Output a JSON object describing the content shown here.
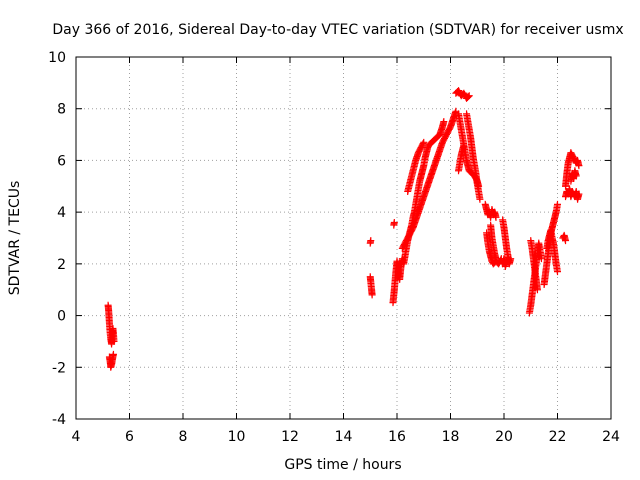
{
  "chart_data": {
    "type": "scatter",
    "title": "Day 366 of 2016, Sidereal Day-to-day VTEC variation (SDTVAR) for receiver usmx",
    "xlabel": "GPS time / hours",
    "ylabel": "SDTVAR / TECUs",
    "xlim": [
      4,
      24
    ],
    "ylim": [
      -4,
      10
    ],
    "xticks": [
      "4",
      "6",
      "8",
      "10",
      "12",
      "14",
      "16",
      "18",
      "20",
      "22",
      "24"
    ],
    "yticks": [
      "-4",
      "-2",
      "0",
      "2",
      "4",
      "6",
      "8",
      "10"
    ],
    "grid": true,
    "marker": "+",
    "color": "#ff0000",
    "series": [
      {
        "name": "SDTVAR",
        "segments": [
          [
            [
              5.2,
              0.4
            ],
            [
              5.22,
              0.2
            ],
            [
              5.25,
              -0.3
            ],
            [
              5.27,
              -0.6
            ],
            [
              5.3,
              -0.9
            ],
            [
              5.33,
              -1.1
            ],
            [
              5.35,
              -0.8
            ],
            [
              5.38,
              -0.5
            ],
            [
              5.4,
              -0.7
            ],
            [
              5.42,
              -1.0
            ]
          ],
          [
            [
              5.25,
              -1.6
            ],
            [
              5.28,
              -1.8
            ],
            [
              5.3,
              -2.0
            ],
            [
              5.33,
              -1.9
            ],
            [
              5.36,
              -1.7
            ],
            [
              5.4,
              -1.5
            ]
          ],
          [
            [
              15.0,
              2.8
            ],
            [
              15.02,
              2.9
            ]
          ],
          [
            [
              15.0,
              1.5
            ],
            [
              15.02,
              1.3
            ],
            [
              15.05,
              1.0
            ],
            [
              15.07,
              0.8
            ]
          ],
          [
            [
              15.88,
              3.5
            ],
            [
              15.9,
              3.6
            ]
          ],
          [
            [
              15.85,
              0.5
            ],
            [
              15.9,
              1.0
            ],
            [
              15.95,
              1.6
            ],
            [
              16.0,
              2.1
            ],
            [
              16.05,
              1.7
            ],
            [
              16.1,
              1.4
            ],
            [
              16.15,
              1.9
            ],
            [
              16.2,
              2.2
            ],
            [
              16.25,
              2.0
            ],
            [
              16.3,
              2.3
            ],
            [
              16.35,
              2.6
            ],
            [
              16.4,
              2.9
            ],
            [
              16.45,
              3.1
            ],
            [
              16.5,
              3.3
            ],
            [
              16.55,
              3.5
            ],
            [
              16.6,
              3.8
            ],
            [
              16.65,
              4.0
            ],
            [
              16.7,
              4.3
            ],
            [
              16.75,
              4.6
            ],
            [
              16.8,
              4.9
            ],
            [
              16.85,
              5.2
            ],
            [
              16.9,
              5.4
            ],
            [
              16.95,
              5.6
            ],
            [
              17.0,
              5.8
            ],
            [
              17.05,
              6.1
            ],
            [
              17.1,
              6.3
            ],
            [
              17.15,
              6.5
            ],
            [
              17.2,
              6.6
            ],
            [
              17.3,
              6.7
            ],
            [
              17.4,
              6.8
            ],
            [
              17.5,
              6.9
            ],
            [
              17.6,
              7.0
            ],
            [
              17.7,
              7.3
            ],
            [
              17.75,
              7.5
            ]
          ],
          [
            [
              16.2,
              2.6
            ],
            [
              16.3,
              2.8
            ],
            [
              16.4,
              3.0
            ],
            [
              16.5,
              3.2
            ],
            [
              16.6,
              3.4
            ],
            [
              16.7,
              3.7
            ],
            [
              16.8,
              4.0
            ],
            [
              16.9,
              4.3
            ],
            [
              17.0,
              4.6
            ],
            [
              17.1,
              4.9
            ],
            [
              17.2,
              5.2
            ],
            [
              17.3,
              5.5
            ],
            [
              17.4,
              5.8
            ],
            [
              17.5,
              6.1
            ],
            [
              17.6,
              6.4
            ],
            [
              17.7,
              6.7
            ],
            [
              17.8,
              6.9
            ],
            [
              17.9,
              7.1
            ],
            [
              18.0,
              7.3
            ],
            [
              18.1,
              7.6
            ],
            [
              18.2,
              7.9
            ]
          ],
          [
            [
              16.4,
              4.8
            ],
            [
              16.5,
              5.2
            ],
            [
              16.6,
              5.6
            ],
            [
              16.7,
              6.0
            ],
            [
              16.8,
              6.3
            ],
            [
              16.9,
              6.5
            ],
            [
              17.0,
              6.7
            ]
          ],
          [
            [
              18.2,
              8.6
            ],
            [
              18.3,
              8.7
            ],
            [
              18.4,
              8.5
            ],
            [
              18.5,
              8.6
            ],
            [
              18.6,
              8.4
            ],
            [
              18.7,
              8.5
            ]
          ],
          [
            [
              18.3,
              7.8
            ],
            [
              18.35,
              7.5
            ],
            [
              18.4,
              7.2
            ],
            [
              18.45,
              6.9
            ],
            [
              18.5,
              6.6
            ],
            [
              18.55,
              6.3
            ],
            [
              18.6,
              6.0
            ],
            [
              18.65,
              5.8
            ],
            [
              18.7,
              5.6
            ],
            [
              18.8,
              5.5
            ],
            [
              18.9,
              5.4
            ],
            [
              19.0,
              5.2
            ],
            [
              19.05,
              5.0
            ]
          ],
          [
            [
              18.6,
              7.8
            ],
            [
              18.65,
              7.5
            ],
            [
              18.7,
              7.2
            ],
            [
              18.75,
              6.9
            ],
            [
              18.8,
              6.5
            ],
            [
              18.85,
              6.1
            ],
            [
              18.9,
              5.8
            ],
            [
              18.95,
              5.5
            ],
            [
              19.0,
              5.1
            ],
            [
              19.05,
              4.8
            ],
            [
              19.1,
              4.5
            ]
          ],
          [
            [
              18.3,
              5.6
            ],
            [
              18.35,
              5.9
            ],
            [
              18.4,
              6.2
            ],
            [
              18.45,
              6.4
            ],
            [
              18.5,
              6.6
            ]
          ],
          [
            [
              19.3,
              4.3
            ],
            [
              19.35,
              4.1
            ],
            [
              19.4,
              3.9
            ],
            [
              19.45,
              4.0
            ],
            [
              19.5,
              3.8
            ],
            [
              19.55,
              4.1
            ],
            [
              19.6,
              3.9
            ],
            [
              19.65,
              4.0
            ],
            [
              19.7,
              3.8
            ]
          ],
          [
            [
              19.35,
              3.2
            ],
            [
              19.4,
              2.8
            ],
            [
              19.45,
              2.5
            ],
            [
              19.5,
              2.3
            ],
            [
              19.55,
              2.1
            ],
            [
              19.6,
              2.0
            ],
            [
              19.7,
              2.1
            ],
            [
              19.8,
              2.0
            ],
            [
              19.9,
              2.2
            ]
          ],
          [
            [
              19.5,
              3.5
            ],
            [
              19.55,
              3.0
            ],
            [
              19.6,
              2.7
            ],
            [
              19.65,
              2.4
            ],
            [
              19.7,
              2.2
            ]
          ],
          [
            [
              19.95,
              3.7
            ],
            [
              20.0,
              3.4
            ],
            [
              20.05,
              3.0
            ],
            [
              20.1,
              2.6
            ],
            [
              20.15,
              2.3
            ],
            [
              20.2,
              2.0
            ],
            [
              20.25,
              2.2
            ]
          ],
          [
            [
              19.95,
              2.0
            ],
            [
              20.0,
              2.2
            ],
            [
              20.05,
              1.9
            ],
            [
              20.1,
              2.1
            ]
          ],
          [
            [
              20.95,
              0.1
            ],
            [
              21.0,
              0.4
            ],
            [
              21.05,
              0.8
            ],
            [
              21.1,
              1.2
            ],
            [
              21.15,
              1.6
            ],
            [
              21.2,
              2.0
            ],
            [
              21.25,
              2.4
            ],
            [
              21.3,
              2.8
            ],
            [
              21.35,
              2.5
            ],
            [
              21.4,
              2.2
            ]
          ],
          [
            [
              21.0,
              2.9
            ],
            [
              21.05,
              2.6
            ],
            [
              21.1,
              2.2
            ],
            [
              21.15,
              1.8
            ],
            [
              21.2,
              1.4
            ],
            [
              21.25,
              1.0
            ]
          ],
          [
            [
              21.5,
              1.2
            ],
            [
              21.55,
              1.6
            ],
            [
              21.6,
              2.0
            ],
            [
              21.65,
              2.4
            ],
            [
              21.7,
              2.8
            ],
            [
              21.75,
              3.2
            ],
            [
              21.8,
              3.4
            ],
            [
              21.85,
              3.6
            ],
            [
              21.9,
              3.8
            ],
            [
              21.95,
              4.0
            ],
            [
              22.0,
              4.3
            ]
          ],
          [
            [
              21.6,
              2.6
            ],
            [
              21.65,
              2.9
            ],
            [
              21.7,
              3.1
            ],
            [
              21.75,
              3.3
            ],
            [
              21.8,
              3.0
            ],
            [
              21.85,
              2.8
            ],
            [
              21.9,
              2.4
            ],
            [
              21.95,
              2.0
            ],
            [
              22.0,
              1.7
            ]
          ],
          [
            [
              22.2,
              3.0
            ],
            [
              22.25,
              3.1
            ],
            [
              22.3,
              2.9
            ]
          ],
          [
            [
              22.3,
              5.0
            ],
            [
              22.35,
              5.5
            ],
            [
              22.4,
              5.9
            ],
            [
              22.45,
              6.1
            ],
            [
              22.5,
              6.3
            ],
            [
              22.55,
              6.2
            ],
            [
              22.6,
              6.1
            ],
            [
              22.65,
              6.0
            ],
            [
              22.7,
              5.9
            ],
            [
              22.75,
              6.0
            ],
            [
              22.8,
              5.8
            ]
          ],
          [
            [
              22.3,
              4.6
            ],
            [
              22.35,
              4.8
            ],
            [
              22.4,
              4.7
            ],
            [
              22.45,
              4.9
            ],
            [
              22.5,
              4.6
            ],
            [
              22.55,
              4.8
            ],
            [
              22.6,
              4.7
            ],
            [
              22.65,
              4.6
            ],
            [
              22.7,
              4.8
            ],
            [
              22.75,
              4.5
            ],
            [
              22.8,
              4.7
            ]
          ],
          [
            [
              22.5,
              5.2
            ],
            [
              22.55,
              5.5
            ],
            [
              22.6,
              5.3
            ],
            [
              22.65,
              5.6
            ],
            [
              22.7,
              5.4
            ]
          ]
        ]
      }
    ]
  }
}
